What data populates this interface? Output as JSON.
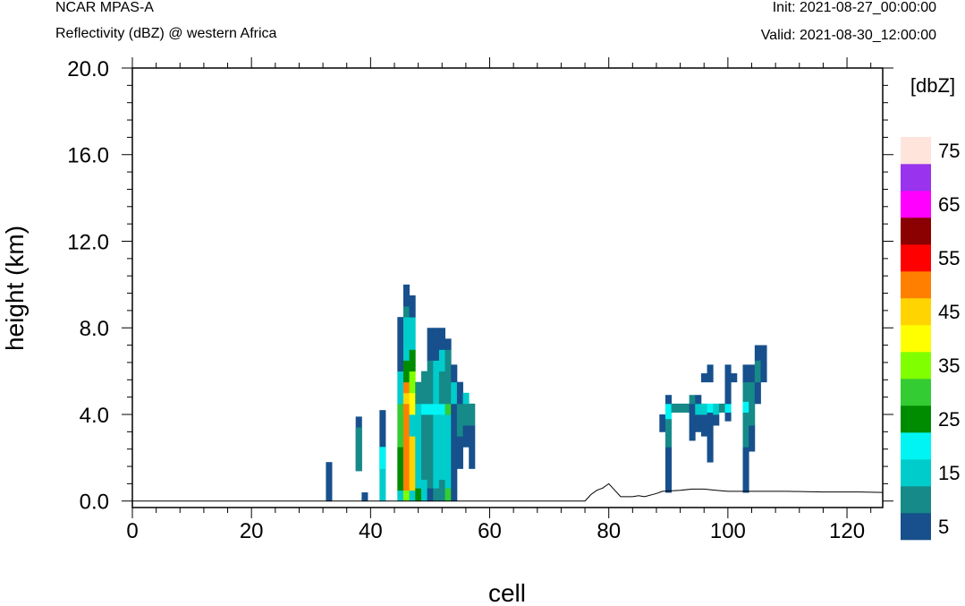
{
  "header": {
    "model": "NCAR MPAS-A",
    "field": "Reflectivity (dBZ) @ western Africa",
    "init": "Init: 2021-08-27_00:00:00",
    "valid": "Valid: 2021-08-30_12:00:00"
  },
  "chart_data": {
    "type": "heatmap",
    "xlabel": "cell",
    "ylabel": "height (km)",
    "xlim": [
      0,
      126
    ],
    "ylim": [
      -0.3,
      20.0
    ],
    "x_ticks": [
      0,
      20,
      40,
      60,
      80,
      100,
      120
    ],
    "y_ticks": [
      "0.0",
      "4.0",
      "8.0",
      "12.0",
      "16.0",
      "20.0"
    ],
    "y_tick_values": [
      0,
      4,
      8,
      12,
      16,
      20
    ],
    "colorbar": {
      "title": "[dbZ]",
      "levels": [
        5,
        10,
        15,
        20,
        25,
        30,
        35,
        40,
        45,
        50,
        55,
        60,
        65,
        70,
        75
      ],
      "labels": [
        "5",
        "15",
        "25",
        "35",
        "45",
        "55",
        "65",
        "75"
      ],
      "colors": [
        "#17508c",
        "#168a88",
        "#00cccc",
        "#00f4f4",
        "#008c00",
        "#33cc33",
        "#80ff00",
        "#ffff00",
        "#ffd400",
        "#ff8000",
        "#ff0000",
        "#8b0000",
        "#ff00ff",
        "#9933ee",
        "#ffe4dc"
      ]
    },
    "terrain": [
      [
        0,
        0
      ],
      [
        76,
        0
      ],
      [
        77,
        0.3
      ],
      [
        78,
        0.5
      ],
      [
        79,
        0.6
      ],
      [
        80,
        0.8
      ],
      [
        81,
        0.5
      ],
      [
        82,
        0.2
      ],
      [
        84,
        0.2
      ],
      [
        85,
        0.25
      ],
      [
        86,
        0.2
      ],
      [
        88,
        0.35
      ],
      [
        89,
        0.45
      ],
      [
        92,
        0.5
      ],
      [
        94,
        0.55
      ],
      [
        96,
        0.55
      ],
      [
        98,
        0.5
      ],
      [
        100,
        0.45
      ],
      [
        104,
        0.45
      ],
      [
        110,
        0.45
      ],
      [
        116,
        0.42
      ],
      [
        122,
        0.42
      ],
      [
        126,
        0.4
      ]
    ],
    "cells": [
      {
        "x": 33,
        "z0": 0,
        "z1": 1.8,
        "c": 5
      },
      {
        "x": 38,
        "z0": 1.4,
        "z1": 3.9,
        "c": 5
      },
      {
        "x": 38,
        "z0": 1.4,
        "z1": 3.4,
        "c": 10
      },
      {
        "x": 39,
        "z0": 0,
        "z1": 0.4,
        "c": 5
      },
      {
        "x": 42,
        "z0": 1.5,
        "z1": 4.2,
        "c": 5
      },
      {
        "x": 42,
        "z0": 0,
        "z1": 1.5,
        "c": 15
      },
      {
        "x": 42,
        "z0": 1.5,
        "z1": 2.5,
        "c": 20
      },
      {
        "x": 45,
        "z0": 0,
        "z1": 0.5,
        "c": 15
      },
      {
        "x": 45,
        "z0": 0.5,
        "z1": 2.5,
        "c": 25
      },
      {
        "x": 45,
        "z0": 2.5,
        "z1": 4.5,
        "c": 30
      },
      {
        "x": 45,
        "z0": 4.5,
        "z1": 6,
        "c": 15
      },
      {
        "x": 45,
        "z0": 6,
        "z1": 8.5,
        "c": 5
      },
      {
        "x": 46,
        "z0": 0,
        "z1": 0.5,
        "c": 35
      },
      {
        "x": 46,
        "z0": 0.5,
        "z1": 4.5,
        "c": 50
      },
      {
        "x": 46,
        "z0": 4.5,
        "z1": 5,
        "c": 45
      },
      {
        "x": 46,
        "z0": 5,
        "z1": 5.5,
        "c": 50
      },
      {
        "x": 46,
        "z0": 5.5,
        "z1": 6.5,
        "c": 25
      },
      {
        "x": 46,
        "z0": 6.5,
        "z1": 8.5,
        "c": 15
      },
      {
        "x": 46,
        "z0": 8.5,
        "z1": 9,
        "c": 10
      },
      {
        "x": 46,
        "z0": 9,
        "z1": 10,
        "c": 5
      },
      {
        "x": 47,
        "z0": 0,
        "z1": 0.5,
        "c": 15
      },
      {
        "x": 47,
        "z0": 0.5,
        "z1": 3,
        "c": 45
      },
      {
        "x": 47,
        "z0": 3,
        "z1": 4,
        "c": 15
      },
      {
        "x": 47,
        "z0": 4,
        "z1": 5,
        "c": 40
      },
      {
        "x": 47,
        "z0": 5,
        "z1": 6,
        "c": 35
      },
      {
        "x": 47,
        "z0": 6,
        "z1": 7,
        "c": 25
      },
      {
        "x": 47,
        "z0": 7,
        "z1": 8.5,
        "c": 15
      },
      {
        "x": 47,
        "z0": 8.5,
        "z1": 9.5,
        "c": 5
      },
      {
        "x": 48,
        "z0": 0,
        "z1": 0.6,
        "c": 25
      },
      {
        "x": 48,
        "z0": 0.6,
        "z1": 4.5,
        "c": 15
      },
      {
        "x": 48,
        "z0": 4.5,
        "z1": 5.5,
        "c": 10
      },
      {
        "x": 49,
        "z0": 0,
        "z1": 1,
        "c": 15
      },
      {
        "x": 49,
        "z0": 1,
        "z1": 4,
        "c": 10
      },
      {
        "x": 49,
        "z0": 4,
        "z1": 4.5,
        "c": 20
      },
      {
        "x": 49,
        "z0": 4.5,
        "z1": 6,
        "c": 10
      },
      {
        "x": 50,
        "z0": 0,
        "z1": 0.6,
        "c": 5
      },
      {
        "x": 50,
        "z0": 0.6,
        "z1": 4,
        "c": 10
      },
      {
        "x": 50,
        "z0": 4,
        "z1": 4.5,
        "c": 20
      },
      {
        "x": 50,
        "z0": 4.5,
        "z1": 6.5,
        "c": 10
      },
      {
        "x": 50,
        "z0": 6.5,
        "z1": 8,
        "c": 5
      },
      {
        "x": 51,
        "z0": 0,
        "z1": 0.6,
        "c": 10
      },
      {
        "x": 51,
        "z0": 0.6,
        "z1": 4,
        "c": 15
      },
      {
        "x": 51,
        "z0": 4,
        "z1": 4.5,
        "c": 20
      },
      {
        "x": 51,
        "z0": 4.5,
        "z1": 6.5,
        "c": 15
      },
      {
        "x": 51,
        "z0": 6.5,
        "z1": 8,
        "c": 5
      },
      {
        "x": 52,
        "z0": 0,
        "z1": 1,
        "c": 10
      },
      {
        "x": 52,
        "z0": 1,
        "z1": 4,
        "c": 15
      },
      {
        "x": 52,
        "z0": 4,
        "z1": 4.5,
        "c": 20
      },
      {
        "x": 52,
        "z0": 4.5,
        "z1": 6,
        "c": 10
      },
      {
        "x": 52,
        "z0": 6,
        "z1": 7,
        "c": 15
      },
      {
        "x": 52,
        "z0": 7,
        "z1": 8,
        "c": 5
      },
      {
        "x": 53,
        "z0": 0,
        "z1": 0.6,
        "c": 30
      },
      {
        "x": 53,
        "z0": 0.6,
        "z1": 4,
        "c": 15
      },
      {
        "x": 53,
        "z0": 4,
        "z1": 4.5,
        "c": 30
      },
      {
        "x": 53,
        "z0": 4.5,
        "z1": 7,
        "c": 10
      },
      {
        "x": 53,
        "z0": 7,
        "z1": 7.5,
        "c": 5
      },
      {
        "x": 54,
        "z0": 0,
        "z1": 4.5,
        "c": 5
      },
      {
        "x": 54,
        "z0": 4.5,
        "z1": 5.5,
        "c": 15
      },
      {
        "x": 54,
        "z0": 5.5,
        "z1": 6.3,
        "c": 5
      },
      {
        "x": 55,
        "z0": 1.5,
        "z1": 3,
        "c": 5
      },
      {
        "x": 55,
        "z0": 3,
        "z1": 4.5,
        "c": 10
      },
      {
        "x": 55,
        "z0": 4.5,
        "z1": 5.5,
        "c": 5
      },
      {
        "x": 56,
        "z0": 2.5,
        "z1": 3.5,
        "c": 5
      },
      {
        "x": 56,
        "z0": 3.5,
        "z1": 4.5,
        "c": 10
      },
      {
        "x": 56,
        "z0": 4.5,
        "z1": 5,
        "c": 15
      },
      {
        "x": 57,
        "z0": 1.5,
        "z1": 3.5,
        "c": 5
      },
      {
        "x": 57,
        "z0": 3.5,
        "z1": 4.5,
        "c": 10
      },
      {
        "x": 89,
        "z0": 3.2,
        "z1": 4,
        "c": 5
      },
      {
        "x": 90,
        "z0": 0.4,
        "z1": 2.5,
        "c": 5
      },
      {
        "x": 90,
        "z0": 2.5,
        "z1": 3.8,
        "c": 10
      },
      {
        "x": 90,
        "z0": 3.8,
        "z1": 4.5,
        "c": 20
      },
      {
        "x": 90,
        "z0": 4.5,
        "z1": 4.9,
        "c": 5
      },
      {
        "x": 91,
        "z0": 4.1,
        "z1": 4.5,
        "c": 10
      },
      {
        "x": 92,
        "z0": 4.1,
        "z1": 4.5,
        "c": 10
      },
      {
        "x": 93,
        "z0": 4.1,
        "z1": 4.5,
        "c": 10
      },
      {
        "x": 94,
        "z0": 2.8,
        "z1": 4.5,
        "c": 5
      },
      {
        "x": 94,
        "z0": 4.5,
        "z1": 4.9,
        "c": 10
      },
      {
        "x": 95,
        "z0": 3.2,
        "z1": 4,
        "c": 5
      },
      {
        "x": 95,
        "z0": 4,
        "z1": 4.5,
        "c": 15
      },
      {
        "x": 95,
        "z0": 4.5,
        "z1": 4.9,
        "c": 5
      },
      {
        "x": 96,
        "z0": 3,
        "z1": 4,
        "c": 5
      },
      {
        "x": 96,
        "z0": 4,
        "z1": 4.5,
        "c": 15
      },
      {
        "x": 96,
        "z0": 5.5,
        "z1": 5.9,
        "c": 5
      },
      {
        "x": 97,
        "z0": 1.8,
        "z1": 4.1,
        "c": 5
      },
      {
        "x": 97,
        "z0": 4.1,
        "z1": 4.5,
        "c": 20
      },
      {
        "x": 97,
        "z0": 5.5,
        "z1": 6.3,
        "c": 5
      },
      {
        "x": 98,
        "z0": 3.5,
        "z1": 4,
        "c": 5
      },
      {
        "x": 98,
        "z0": 4,
        "z1": 4.5,
        "c": 15
      },
      {
        "x": 99,
        "z0": 4.1,
        "z1": 4.5,
        "c": 10
      },
      {
        "x": 100,
        "z0": 3.7,
        "z1": 4.1,
        "c": 5
      },
      {
        "x": 100,
        "z0": 4.1,
        "z1": 4.5,
        "c": 20
      },
      {
        "x": 100,
        "z0": 4.5,
        "z1": 6.3,
        "c": 5
      },
      {
        "x": 101,
        "z0": 5.5,
        "z1": 5.9,
        "c": 5
      },
      {
        "x": 103,
        "z0": 0.4,
        "z1": 2.5,
        "c": 5
      },
      {
        "x": 103,
        "z0": 2.5,
        "z1": 4.1,
        "c": 10
      },
      {
        "x": 103,
        "z0": 4.1,
        "z1": 4.6,
        "c": 20
      },
      {
        "x": 103,
        "z0": 4.6,
        "z1": 5.5,
        "c": 10
      },
      {
        "x": 103,
        "z0": 5.5,
        "z1": 6.3,
        "c": 5
      },
      {
        "x": 104,
        "z0": 2.3,
        "z1": 3.5,
        "c": 5
      },
      {
        "x": 104,
        "z0": 3.5,
        "z1": 5.5,
        "c": 10
      },
      {
        "x": 104,
        "z0": 5.5,
        "z1": 6.3,
        "c": 5
      },
      {
        "x": 105,
        "z0": 4.5,
        "z1": 5.5,
        "c": 5
      },
      {
        "x": 105,
        "z0": 5.5,
        "z1": 6.5,
        "c": 10
      },
      {
        "x": 105,
        "z0": 6.5,
        "z1": 7.2,
        "c": 5
      },
      {
        "x": 106,
        "z0": 5.5,
        "z1": 7.2,
        "c": 5
      }
    ]
  }
}
